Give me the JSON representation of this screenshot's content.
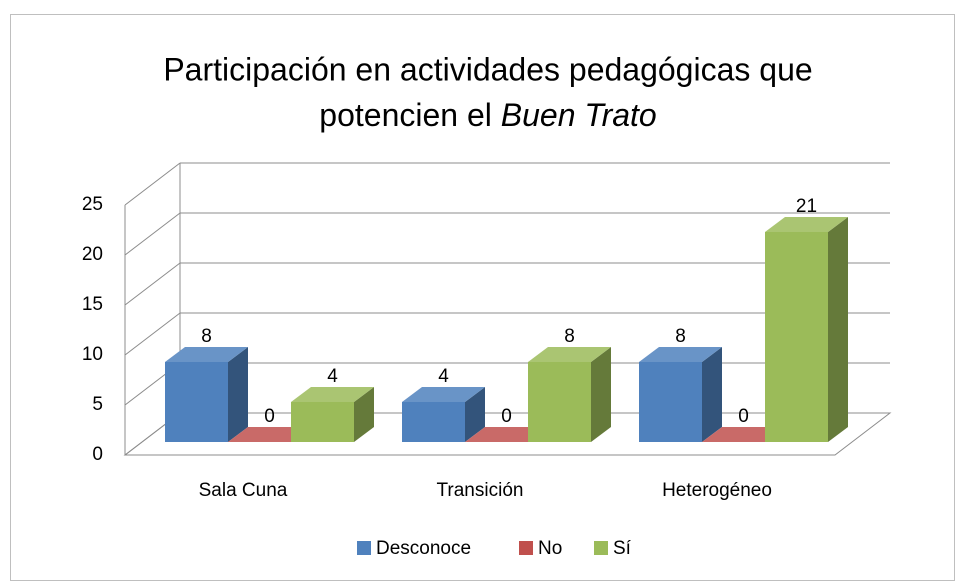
{
  "chart_data": {
    "type": "bar3d",
    "title_lines": [
      "Participación en actividades pedagógicas que",
      "potencien el"
    ],
    "title_italic": "Buen Trato",
    "categories": [
      "Sala Cuna",
      "Transición",
      "Heterogéneo"
    ],
    "series": [
      {
        "name": "Desconoce",
        "color": "#4f81bd",
        "values": [
          8,
          4,
          8
        ]
      },
      {
        "name": "No",
        "color": "#c0504d",
        "values": [
          0,
          0,
          0
        ]
      },
      {
        "name": "Sí",
        "color": "#9bbb59",
        "values": [
          4,
          8,
          21
        ]
      }
    ],
    "ylim": [
      0,
      25
    ],
    "yticks": [
      0,
      5,
      10,
      15,
      20,
      25
    ],
    "grid": true,
    "legend": "bottom"
  }
}
